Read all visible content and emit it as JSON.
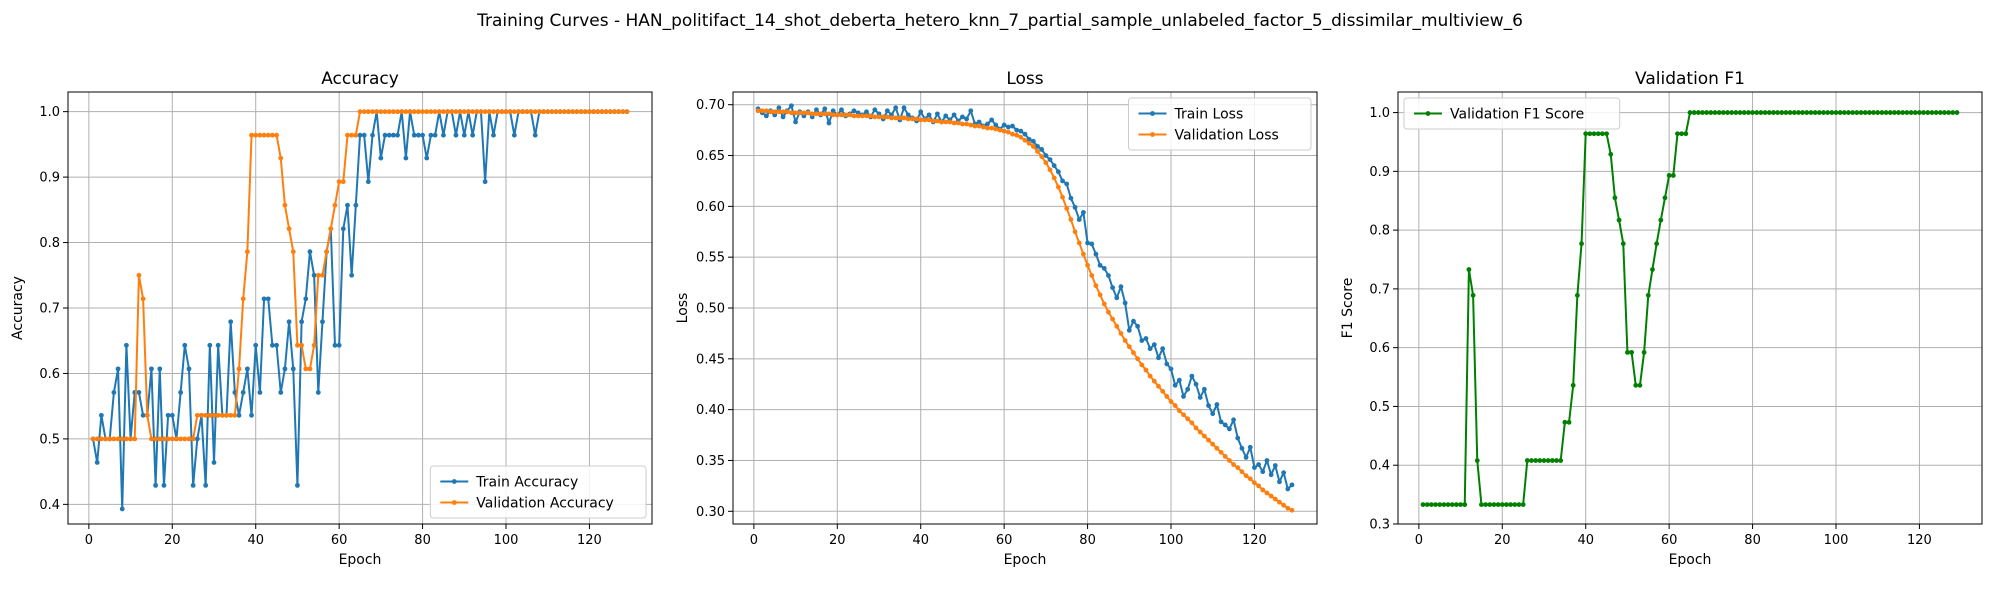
{
  "figure": {
    "title": "Training Curves - HAN_politifact_14_shot_deberta_hetero_knn_7_partial_sample_unlabeled_factor_5_dissimilar_multiview_6"
  },
  "colors": {
    "train": "#1f77b4",
    "validation": "#ff7f0e",
    "f1": "#008000",
    "grid": "#b0b0b0"
  },
  "chart_data": [
    {
      "type": "line",
      "title": "Accuracy",
      "xlabel": "Epoch",
      "ylabel": "Accuracy",
      "xlim": [
        -5,
        135
      ],
      "ylim": [
        0.37,
        1.03
      ],
      "xticks": [
        0,
        20,
        40,
        60,
        80,
        100,
        120
      ],
      "yticks": [
        0.4,
        0.5,
        0.6,
        0.7,
        0.8,
        0.9,
        1.0
      ],
      "grid": true,
      "legend": "lower-right",
      "x_start": 1,
      "series": [
        {
          "name": "Train Accuracy",
          "color": "#1f77b4",
          "values": [
            0.5,
            0.464,
            0.536,
            0.5,
            0.5,
            0.571,
            0.607,
            0.393,
            0.643,
            0.5,
            0.571,
            0.571,
            0.536,
            0.536,
            0.607,
            0.429,
            0.607,
            0.429,
            0.536,
            0.536,
            0.5,
            0.571,
            0.643,
            0.607,
            0.429,
            0.5,
            0.536,
            0.429,
            0.643,
            0.464,
            0.643,
            0.536,
            0.536,
            0.679,
            0.571,
            0.536,
            0.571,
            0.607,
            0.536,
            0.643,
            0.571,
            0.714,
            0.714,
            0.643,
            0.643,
            0.571,
            0.607,
            0.679,
            0.607,
            0.429,
            0.679,
            0.714,
            0.786,
            0.75,
            0.571,
            0.679,
            0.786,
            0.821,
            0.643,
            0.643,
            0.821,
            0.857,
            0.75,
            0.857,
            0.964,
            0.964,
            0.893,
            0.964,
            1.0,
            0.929,
            0.964,
            0.964,
            0.964,
            0.964,
            1.0,
            0.929,
            1.0,
            0.964,
            0.964,
            0.964,
            0.929,
            0.964,
            0.964,
            1.0,
            0.964,
            1.0,
            1.0,
            0.964,
            1.0,
            0.964,
            1.0,
            0.964,
            1.0,
            1.0,
            0.893,
            1.0,
            0.964,
            1.0,
            1.0,
            1.0,
            1.0,
            0.964,
            1.0,
            1.0,
            1.0,
            1.0,
            0.964,
            1.0,
            1.0,
            1.0,
            1.0,
            1.0,
            1.0,
            1.0,
            1.0,
            1.0,
            1.0,
            1.0,
            1.0,
            1.0,
            1.0,
            1.0,
            1.0,
            1.0,
            1.0,
            1.0,
            1.0,
            1.0,
            1.0
          ]
        },
        {
          "name": "Validation Accuracy",
          "color": "#ff7f0e",
          "values": [
            0.5,
            0.5,
            0.5,
            0.5,
            0.5,
            0.5,
            0.5,
            0.5,
            0.5,
            0.5,
            0.5,
            0.75,
            0.714,
            0.536,
            0.5,
            0.5,
            0.5,
            0.5,
            0.5,
            0.5,
            0.5,
            0.5,
            0.5,
            0.5,
            0.5,
            0.536,
            0.536,
            0.536,
            0.536,
            0.536,
            0.536,
            0.536,
            0.536,
            0.536,
            0.536,
            0.607,
            0.714,
            0.786,
            0.964,
            0.964,
            0.964,
            0.964,
            0.964,
            0.964,
            0.964,
            0.929,
            0.857,
            0.821,
            0.786,
            0.643,
            0.643,
            0.607,
            0.607,
            0.643,
            0.75,
            0.75,
            0.786,
            0.821,
            0.857,
            0.893,
            0.893,
            0.964,
            0.964,
            0.964,
            1.0,
            1.0,
            1.0,
            1.0,
            1.0,
            1.0,
            1.0,
            1.0,
            1.0,
            1.0,
            1.0,
            1.0,
            1.0,
            1.0,
            1.0,
            1.0,
            1.0,
            1.0,
            1.0,
            1.0,
            1.0,
            1.0,
            1.0,
            1.0,
            1.0,
            1.0,
            1.0,
            1.0,
            1.0,
            1.0,
            1.0,
            1.0,
            1.0,
            1.0,
            1.0,
            1.0,
            1.0,
            1.0,
            1.0,
            1.0,
            1.0,
            1.0,
            1.0,
            1.0,
            1.0,
            1.0,
            1.0,
            1.0,
            1.0,
            1.0,
            1.0,
            1.0,
            1.0,
            1.0,
            1.0,
            1.0,
            1.0,
            1.0,
            1.0,
            1.0,
            1.0,
            1.0,
            1.0,
            1.0,
            1.0
          ]
        }
      ]
    },
    {
      "type": "line",
      "title": "Loss",
      "xlabel": "Epoch",
      "ylabel": "Loss",
      "xlim": [
        -5,
        135
      ],
      "ylim": [
        0.2875,
        0.7125
      ],
      "xticks": [
        0,
        20,
        40,
        60,
        80,
        100,
        120
      ],
      "yticks": [
        0.3,
        0.35,
        0.4,
        0.45,
        0.5,
        0.55,
        0.6,
        0.65,
        0.7
      ],
      "grid": true,
      "legend": "top-right",
      "x_start": 1,
      "series": [
        {
          "name": "Train Loss",
          "color": "#1f77b4",
          "values": [
            0.696,
            0.692,
            0.689,
            0.694,
            0.69,
            0.697,
            0.688,
            0.694,
            0.699,
            0.683,
            0.693,
            0.689,
            0.693,
            0.688,
            0.695,
            0.69,
            0.696,
            0.682,
            0.694,
            0.69,
            0.695,
            0.689,
            0.691,
            0.694,
            0.692,
            0.69,
            0.693,
            0.688,
            0.695,
            0.691,
            0.686,
            0.694,
            0.69,
            0.697,
            0.685,
            0.697,
            0.69,
            0.687,
            0.684,
            0.693,
            0.686,
            0.69,
            0.683,
            0.691,
            0.683,
            0.689,
            0.685,
            0.69,
            0.684,
            0.688,
            0.686,
            0.694,
            0.681,
            0.683,
            0.679,
            0.681,
            0.685,
            0.68,
            0.676,
            0.68,
            0.678,
            0.679,
            0.675,
            0.674,
            0.671,
            0.666,
            0.664,
            0.659,
            0.656,
            0.65,
            0.646,
            0.64,
            0.634,
            0.625,
            0.622,
            0.608,
            0.599,
            0.587,
            0.594,
            0.564,
            0.563,
            0.553,
            0.542,
            0.539,
            0.532,
            0.52,
            0.51,
            0.521,
            0.505,
            0.478,
            0.487,
            0.482,
            0.468,
            0.47,
            0.46,
            0.464,
            0.451,
            0.46,
            0.445,
            0.44,
            0.424,
            0.429,
            0.413,
            0.42,
            0.433,
            0.425,
            0.412,
            0.42,
            0.404,
            0.396,
            0.405,
            0.388,
            0.385,
            0.381,
            0.39,
            0.372,
            0.362,
            0.353,
            0.363,
            0.343,
            0.346,
            0.339,
            0.35,
            0.336,
            0.345,
            0.329,
            0.338,
            0.322,
            0.326
          ]
        },
        {
          "name": "Validation Loss",
          "color": "#ff7f0e",
          "values": [
            0.694,
            0.694,
            0.694,
            0.693,
            0.693,
            0.693,
            0.693,
            0.693,
            0.692,
            0.692,
            0.692,
            0.692,
            0.692,
            0.691,
            0.691,
            0.691,
            0.691,
            0.691,
            0.69,
            0.69,
            0.69,
            0.69,
            0.69,
            0.689,
            0.689,
            0.689,
            0.689,
            0.689,
            0.688,
            0.688,
            0.688,
            0.688,
            0.687,
            0.687,
            0.687,
            0.687,
            0.686,
            0.686,
            0.686,
            0.685,
            0.685,
            0.685,
            0.684,
            0.684,
            0.683,
            0.683,
            0.683,
            0.682,
            0.682,
            0.681,
            0.681,
            0.68,
            0.679,
            0.679,
            0.678,
            0.677,
            0.677,
            0.676,
            0.675,
            0.674,
            0.673,
            0.671,
            0.67,
            0.668,
            0.665,
            0.662,
            0.659,
            0.654,
            0.649,
            0.643,
            0.636,
            0.628,
            0.619,
            0.609,
            0.598,
            0.587,
            0.575,
            0.564,
            0.553,
            0.542,
            0.532,
            0.522,
            0.513,
            0.504,
            0.496,
            0.489,
            0.482,
            0.475,
            0.468,
            0.462,
            0.456,
            0.45,
            0.444,
            0.439,
            0.433,
            0.428,
            0.423,
            0.418,
            0.413,
            0.408,
            0.404,
            0.399,
            0.395,
            0.391,
            0.387,
            0.382,
            0.378,
            0.374,
            0.37,
            0.366,
            0.362,
            0.358,
            0.354,
            0.35,
            0.346,
            0.343,
            0.339,
            0.335,
            0.332,
            0.328,
            0.325,
            0.321,
            0.318,
            0.315,
            0.312,
            0.309,
            0.306,
            0.303,
            0.301
          ]
        }
      ]
    },
    {
      "type": "line",
      "title": "Validation F1",
      "xlabel": "Epoch",
      "ylabel": "F1 Score",
      "xlim": [
        -5,
        135
      ],
      "ylim": [
        0.3,
        1.035
      ],
      "xticks": [
        0,
        20,
        40,
        60,
        80,
        100,
        120
      ],
      "yticks": [
        0.3,
        0.4,
        0.5,
        0.6,
        0.7,
        0.8,
        0.9,
        1.0
      ],
      "grid": true,
      "legend": "top-left",
      "x_start": 1,
      "series": [
        {
          "name": "Validation F1 Score",
          "color": "#008000",
          "values": [
            0.333,
            0.333,
            0.333,
            0.333,
            0.333,
            0.333,
            0.333,
            0.333,
            0.333,
            0.333,
            0.333,
            0.733,
            0.689,
            0.408,
            0.333,
            0.333,
            0.333,
            0.333,
            0.333,
            0.333,
            0.333,
            0.333,
            0.333,
            0.333,
            0.333,
            0.408,
            0.408,
            0.408,
            0.408,
            0.408,
            0.408,
            0.408,
            0.408,
            0.408,
            0.473,
            0.473,
            0.536,
            0.689,
            0.777,
            0.964,
            0.964,
            0.964,
            0.964,
            0.964,
            0.964,
            0.929,
            0.855,
            0.817,
            0.777,
            0.592,
            0.592,
            0.536,
            0.536,
            0.592,
            0.689,
            0.733,
            0.777,
            0.817,
            0.855,
            0.893,
            0.893,
            0.964,
            0.964,
            0.964,
            1.0,
            1.0,
            1.0,
            1.0,
            1.0,
            1.0,
            1.0,
            1.0,
            1.0,
            1.0,
            1.0,
            1.0,
            1.0,
            1.0,
            1.0,
            1.0,
            1.0,
            1.0,
            1.0,
            1.0,
            1.0,
            1.0,
            1.0,
            1.0,
            1.0,
            1.0,
            1.0,
            1.0,
            1.0,
            1.0,
            1.0,
            1.0,
            1.0,
            1.0,
            1.0,
            1.0,
            1.0,
            1.0,
            1.0,
            1.0,
            1.0,
            1.0,
            1.0,
            1.0,
            1.0,
            1.0,
            1.0,
            1.0,
            1.0,
            1.0,
            1.0,
            1.0,
            1.0,
            1.0,
            1.0,
            1.0,
            1.0,
            1.0,
            1.0,
            1.0,
            1.0,
            1.0,
            1.0,
            1.0,
            1.0
          ]
        }
      ]
    }
  ]
}
